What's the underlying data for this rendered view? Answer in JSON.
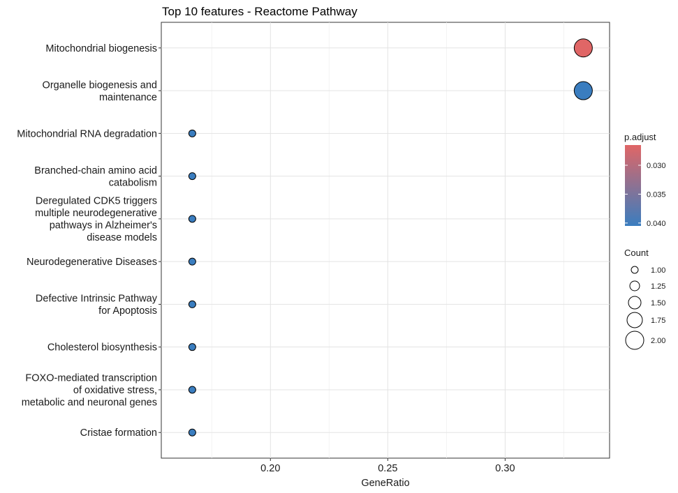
{
  "chart_data": {
    "type": "scatter",
    "title": "Top 10 features - Reactome Pathway",
    "xlabel": "GeneRatio",
    "ylabel": "",
    "xlim": [
      0.1535,
      0.3445
    ],
    "xticks": [
      0.2,
      0.25,
      0.3
    ],
    "xtick_labels": [
      "0.20",
      "0.25",
      "0.30"
    ],
    "grid": true,
    "legend_position": "right",
    "categories": [
      [
        "Mitochondrial biogenesis"
      ],
      [
        "Organelle biogenesis and",
        "maintenance"
      ],
      [
        "Mitochondrial RNA degradation"
      ],
      [
        "Branched-chain amino acid",
        "catabolism"
      ],
      [
        "Deregulated CDK5 triggers",
        "multiple neurodegenerative",
        "pathways in Alzheimer's",
        "disease models"
      ],
      [
        "Neurodegenerative Diseases"
      ],
      [
        "Defective Intrinsic Pathway",
        "for Apoptosis"
      ],
      [
        "Cholesterol biosynthesis"
      ],
      [
        "FOXO-mediated transcription",
        "of oxidative stress,",
        "metabolic and neuronal genes"
      ],
      [
        "Cristae formation"
      ]
    ],
    "points": [
      {
        "gene_ratio": 0.3333,
        "count": 2,
        "p_adjust": 0.0265,
        "color": "#e06666"
      },
      {
        "gene_ratio": 0.3333,
        "count": 2,
        "p_adjust": 0.0405,
        "color": "#3a7dbf"
      },
      {
        "gene_ratio": 0.1667,
        "count": 1,
        "p_adjust": 0.0405,
        "color": "#3a7dbf"
      },
      {
        "gene_ratio": 0.1667,
        "count": 1,
        "p_adjust": 0.0405,
        "color": "#3a7dbf"
      },
      {
        "gene_ratio": 0.1667,
        "count": 1,
        "p_adjust": 0.0405,
        "color": "#3a7dbf"
      },
      {
        "gene_ratio": 0.1667,
        "count": 1,
        "p_adjust": 0.0405,
        "color": "#3a7dbf"
      },
      {
        "gene_ratio": 0.1667,
        "count": 1,
        "p_adjust": 0.0405,
        "color": "#3a7dbf"
      },
      {
        "gene_ratio": 0.1667,
        "count": 1,
        "p_adjust": 0.0405,
        "color": "#3a7dbf"
      },
      {
        "gene_ratio": 0.1667,
        "count": 1,
        "p_adjust": 0.0405,
        "color": "#3a7dbf"
      },
      {
        "gene_ratio": 0.1667,
        "count": 1,
        "p_adjust": 0.0405,
        "color": "#3a7dbf"
      }
    ],
    "color_legend": {
      "title": "p.adjust",
      "breaks": [
        0.03,
        0.035,
        0.04
      ],
      "labels": [
        "0.030",
        "0.035",
        "0.040"
      ],
      "range": [
        0.0265,
        0.0405
      ],
      "low_color": "#e06666",
      "high_color": "#3a7dbf"
    },
    "size_legend": {
      "title": "Count",
      "breaks": [
        1.0,
        1.25,
        1.5,
        1.75,
        2.0
      ],
      "labels": [
        "1.00",
        "1.25",
        "1.50",
        "1.75",
        "2.00"
      ]
    }
  }
}
